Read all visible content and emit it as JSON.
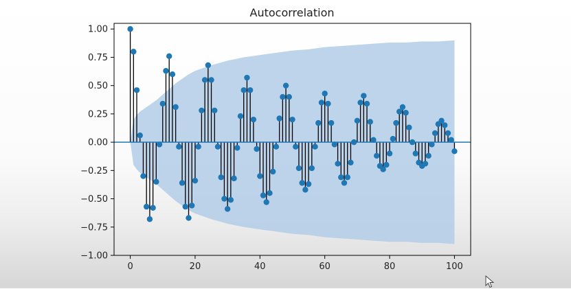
{
  "chart_data": {
    "type": "stem",
    "title": "Autocorrelation",
    "xlabel": "",
    "ylabel": "",
    "xlim": [
      -5,
      105
    ],
    "ylim": [
      -1.0,
      1.05
    ],
    "x_ticks": [
      0,
      20,
      40,
      60,
      80,
      100
    ],
    "y_ticks": [
      1.0,
      0.75,
      0.5,
      0.25,
      0.0,
      -0.25,
      -0.5,
      -0.75,
      -1.0
    ],
    "x_tick_labels": [
      "0",
      "20",
      "40",
      "60",
      "80",
      "100"
    ],
    "y_tick_labels": [
      "1.00",
      "0.75",
      "0.50",
      "0.25",
      "0.00",
      "−0.25",
      "−0.50",
      "−0.75",
      "−1.00"
    ],
    "grid": false,
    "lags": [
      0,
      1,
      2,
      3,
      4,
      5,
      6,
      7,
      8,
      9,
      10,
      11,
      12,
      13,
      14,
      15,
      16,
      17,
      18,
      19,
      20,
      21,
      22,
      23,
      24,
      25,
      26,
      27,
      28,
      29,
      30,
      31,
      32,
      33,
      34,
      35,
      36,
      37,
      38,
      39,
      40,
      41,
      42,
      43,
      44,
      45,
      46,
      47,
      48,
      49,
      50,
      51,
      52,
      53,
      54,
      55,
      56,
      57,
      58,
      59,
      60,
      61,
      62,
      63,
      64,
      65,
      66,
      67,
      68,
      69,
      70,
      71,
      72,
      73,
      74,
      75,
      76,
      77,
      78,
      79,
      80,
      81,
      82,
      83,
      84,
      85,
      86,
      87,
      88,
      89,
      90,
      91,
      92,
      93,
      94,
      95,
      96,
      97,
      98,
      99,
      100
    ],
    "values": [
      1.0,
      0.8,
      0.46,
      0.06,
      -0.3,
      -0.57,
      -0.68,
      -0.58,
      -0.35,
      -0.02,
      0.34,
      0.63,
      0.76,
      0.6,
      0.31,
      -0.04,
      -0.36,
      -0.57,
      -0.67,
      -0.56,
      -0.34,
      -0.04,
      0.28,
      0.55,
      0.68,
      0.55,
      0.28,
      -0.04,
      -0.31,
      -0.5,
      -0.59,
      -0.51,
      -0.32,
      -0.05,
      0.23,
      0.46,
      0.57,
      0.46,
      0.2,
      -0.06,
      -0.3,
      -0.47,
      -0.53,
      -0.45,
      -0.26,
      -0.04,
      0.21,
      0.4,
      0.5,
      0.4,
      0.2,
      -0.04,
      -0.23,
      -0.36,
      -0.42,
      -0.37,
      -0.23,
      -0.04,
      0.17,
      0.35,
      0.43,
      0.34,
      0.17,
      -0.02,
      -0.19,
      -0.31,
      -0.36,
      -0.31,
      -0.18,
      0.0,
      0.19,
      0.35,
      0.41,
      0.34,
      0.18,
      0.02,
      -0.12,
      -0.21,
      -0.24,
      -0.2,
      -0.1,
      0.03,
      0.17,
      0.27,
      0.31,
      0.26,
      0.13,
      0.0,
      -0.1,
      -0.18,
      -0.21,
      -0.19,
      -0.12,
      -0.02,
      0.08,
      0.16,
      0.19,
      0.15,
      0.08,
      0.02,
      -0.08
    ],
    "confidence_band": {
      "lags": [
        0,
        1,
        2,
        3,
        4,
        6,
        8,
        10,
        12,
        14,
        16,
        18,
        20,
        25,
        30,
        35,
        40,
        45,
        50,
        55,
        60,
        65,
        70,
        75,
        80,
        85,
        90,
        95,
        100
      ],
      "upper": [
        0.0,
        0.2,
        0.24,
        0.27,
        0.29,
        0.33,
        0.37,
        0.42,
        0.47,
        0.52,
        0.56,
        0.6,
        0.63,
        0.68,
        0.72,
        0.75,
        0.77,
        0.79,
        0.81,
        0.82,
        0.84,
        0.85,
        0.86,
        0.87,
        0.88,
        0.88,
        0.89,
        0.89,
        0.9
      ]
    },
    "colors": {
      "markers": "#1f77b4",
      "stems": "#000000",
      "band": "#b3cde8",
      "zero_line": "#1f77b4"
    }
  }
}
